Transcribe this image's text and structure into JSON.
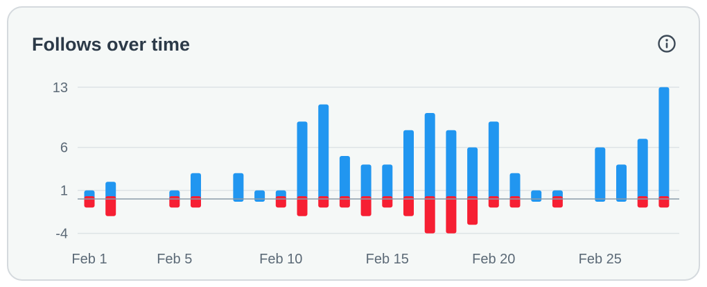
{
  "card": {
    "title": "Follows over time",
    "info_icon": "info-circle-icon"
  },
  "colors": {
    "positive": "#2196f0",
    "negative": "#f61f33",
    "grid": "#dde3e6",
    "zero_line": "#8a9aa8",
    "text": "#5b6976"
  },
  "chart_data": {
    "type": "bar",
    "title": "Follows over time",
    "xlabel": "",
    "ylabel": "",
    "ylim": [
      -4,
      13
    ],
    "y_ticks": [
      "13",
      "6",
      "1",
      "-4"
    ],
    "y_tick_values": [
      13,
      6,
      1,
      -4
    ],
    "x_tick_labels": [
      "Feb 1",
      "Feb 5",
      "Feb 10",
      "Feb 15",
      "Feb 20",
      "Feb 25"
    ],
    "x_tick_days": [
      1,
      5,
      10,
      15,
      20,
      25
    ],
    "categories": [
      "Feb 1",
      "Feb 2",
      "Feb 3",
      "Feb 4",
      "Feb 5",
      "Feb 6",
      "Feb 7",
      "Feb 8",
      "Feb 9",
      "Feb 10",
      "Feb 11",
      "Feb 12",
      "Feb 13",
      "Feb 14",
      "Feb 15",
      "Feb 16",
      "Feb 17",
      "Feb 18",
      "Feb 19",
      "Feb 20",
      "Feb 21",
      "Feb 22",
      "Feb 23",
      "Feb 24",
      "Feb 25",
      "Feb 26",
      "Feb 27",
      "Feb 28"
    ],
    "grid": true,
    "series": [
      {
        "values": [
          1,
          2,
          0,
          0,
          1,
          3,
          0,
          3,
          1,
          1,
          9,
          11,
          5,
          4,
          4,
          8,
          10,
          8,
          6,
          9,
          3,
          1,
          1,
          0,
          6,
          4,
          7,
          13
        ]
      },
      {
        "values": [
          -1,
          -2,
          0,
          0,
          -1,
          -1,
          0,
          0,
          0,
          -1,
          -2,
          -1,
          -1,
          -2,
          -1,
          -2,
          -4,
          -4,
          -3,
          -1,
          -1,
          0,
          -1,
          0,
          0,
          0,
          -1,
          -1
        ]
      }
    ]
  }
}
